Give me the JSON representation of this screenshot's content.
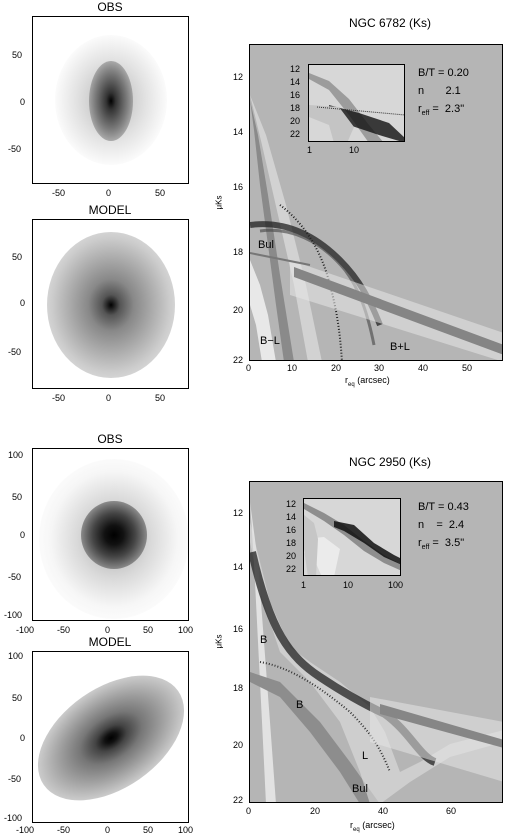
{
  "galaxy1": {
    "title": "NGC 6782 (Ks)",
    "obs_label": "OBS",
    "model_label": "MODEL",
    "img_ticks_x": [
      "-50",
      "0",
      "50"
    ],
    "img_ticks_y": [
      "50",
      "0",
      "-50"
    ],
    "plot_xlabel": "r",
    "plot_xlabel_sub": "eq",
    "plot_xlabel_unit": "(arcsec)",
    "plot_ylabel": "μKs",
    "plot_xticks": [
      "0",
      "10",
      "20",
      "30",
      "40",
      "50"
    ],
    "plot_yticks": [
      "12",
      "14",
      "16",
      "18",
      "20",
      "22"
    ],
    "inset_xticks": [
      "1",
      "10"
    ],
    "inset_yticks": [
      "12",
      "14",
      "16",
      "18",
      "20",
      "22"
    ],
    "stats": {
      "bt": "B/T =  0.20",
      "n": "n       2.1",
      "reff": "r",
      "reff_sub": "eff",
      "reff_val": " =  2.3\""
    },
    "component_labels": {
      "bul": "Bul",
      "bl_left": "B−L",
      "bl_right": "B+L"
    }
  },
  "galaxy2": {
    "title": "NGC 2950 (Ks)",
    "obs_label": "OBS",
    "model_label": "MODEL",
    "img_ticks_x": [
      "-100",
      "-50",
      "0",
      "50",
      "100"
    ],
    "img_ticks_y": [
      "100",
      "50",
      "0",
      "-50",
      "-100"
    ],
    "plot_xlabel": "r",
    "plot_xlabel_sub": "eq",
    "plot_xlabel_unit": "(arcsec)",
    "plot_ylabel": "μKs",
    "plot_xticks": [
      "0",
      "20",
      "40",
      "60"
    ],
    "plot_yticks": [
      "12",
      "14",
      "16",
      "18",
      "20",
      "22"
    ],
    "inset_xticks": [
      "1",
      "10",
      "100"
    ],
    "inset_yticks": [
      "12",
      "14",
      "16",
      "18",
      "20",
      "22"
    ],
    "stats": {
      "bt": "B/T =  0.43",
      "n": "n    =  2.4",
      "reff": "r",
      "reff_sub": "eff",
      "reff_val": " =  3.5\""
    },
    "component_labels": {
      "b_top": "B",
      "b_mid": "B",
      "l": "L",
      "bul": "Bul"
    }
  }
}
